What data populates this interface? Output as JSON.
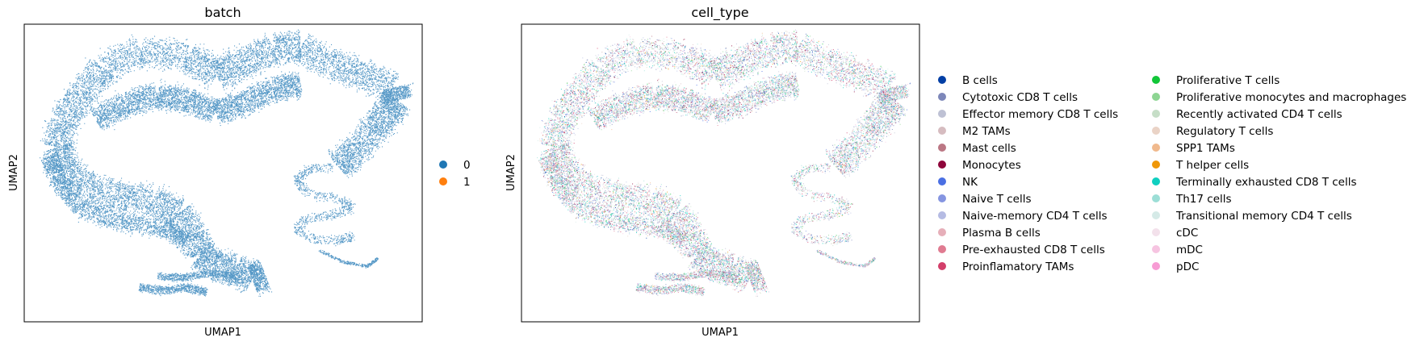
{
  "chart_data": [
    {
      "type": "scatter",
      "title": "batch",
      "xlabel": "UMAP1",
      "ylabel": "UMAP2",
      "grid": false,
      "legend_position": "right",
      "legend": [
        {
          "label": "0",
          "color": "#1f77b4"
        },
        {
          "label": "1",
          "color": "#ff7f0e"
        }
      ]
    },
    {
      "type": "scatter",
      "title": "cell_type",
      "xlabel": "UMAP1",
      "ylabel": "UMAP2",
      "grid": false,
      "legend_position": "right",
      "legend": [
        {
          "label": "B cells",
          "color": "#023fa5"
        },
        {
          "label": "Cytotoxic CD8 T cells",
          "color": "#7d87b9"
        },
        {
          "label": "Effector memory CD8 T cells",
          "color": "#bec1d4"
        },
        {
          "label": "M2 TAMs",
          "color": "#d6bcc0"
        },
        {
          "label": "Mast cells",
          "color": "#bb7784"
        },
        {
          "label": "Monocytes",
          "color": "#8e063b"
        },
        {
          "label": "NK",
          "color": "#4a6fe3"
        },
        {
          "label": "Naive T cells",
          "color": "#8595e1"
        },
        {
          "label": "Naive-memory CD4 T cells",
          "color": "#b5bbe3"
        },
        {
          "label": "Plasma B cells",
          "color": "#e6afb9"
        },
        {
          "label": "Pre-exhausted CD8 T cells",
          "color": "#e07b91"
        },
        {
          "label": "Proinflamatory TAMs",
          "color": "#d33f6a"
        },
        {
          "label": "Proliferative T cells",
          "color": "#11c638"
        },
        {
          "label": "Proliferative monocytes and macrophages",
          "color": "#8dd593"
        },
        {
          "label": "Recently activated CD4 T cells",
          "color": "#c6dec7"
        },
        {
          "label": "Regulatory T cells",
          "color": "#ead3c6"
        },
        {
          "label": "SPP1 TAMs",
          "color": "#f0b98d"
        },
        {
          "label": "T helper cells",
          "color": "#ef9708"
        },
        {
          "label": "Terminally exhausted CD8 T cells",
          "color": "#0fcfc0"
        },
        {
          "label": "Th17 cells",
          "color": "#9cded6"
        },
        {
          "label": "Transitional memory CD4 T cells",
          "color": "#d5eae7"
        },
        {
          "label": "cDC",
          "color": "#f3e1eb"
        },
        {
          "label": "mDC",
          "color": "#f6c4e1"
        },
        {
          "label": "pDC",
          "color": "#f79cd4"
        }
      ]
    }
  ]
}
